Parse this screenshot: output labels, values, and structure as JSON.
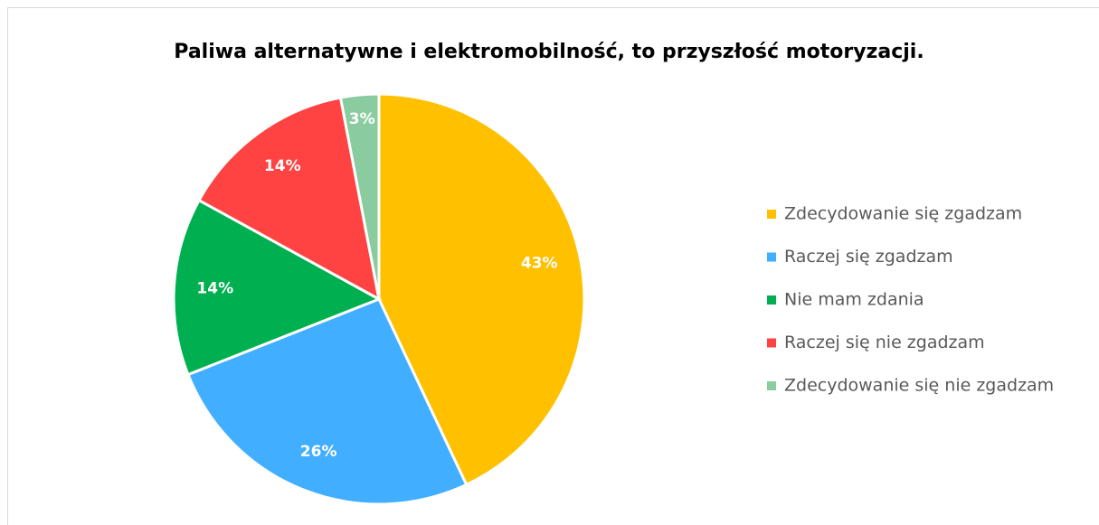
{
  "chart_data": {
    "type": "pie",
    "title": "Paliwa alternatywne i elektromobilność, to przyszłość motoryzacji.",
    "categories": [
      "Zdecydowanie się zgadzam",
      "Raczej się zgadzam",
      "Nie mam zdania",
      "Raczej się nie zgadzam",
      "Zdecydowanie się nie zgadzam"
    ],
    "values": [
      43,
      26,
      14,
      14,
      3
    ],
    "value_labels": [
      "43%",
      "26%",
      "14%",
      "14%",
      "3%"
    ],
    "colors": [
      "#FFC000",
      "#41AEFF",
      "#00B050",
      "#FF4343",
      "#8ACCA0"
    ],
    "legend": "right"
  }
}
